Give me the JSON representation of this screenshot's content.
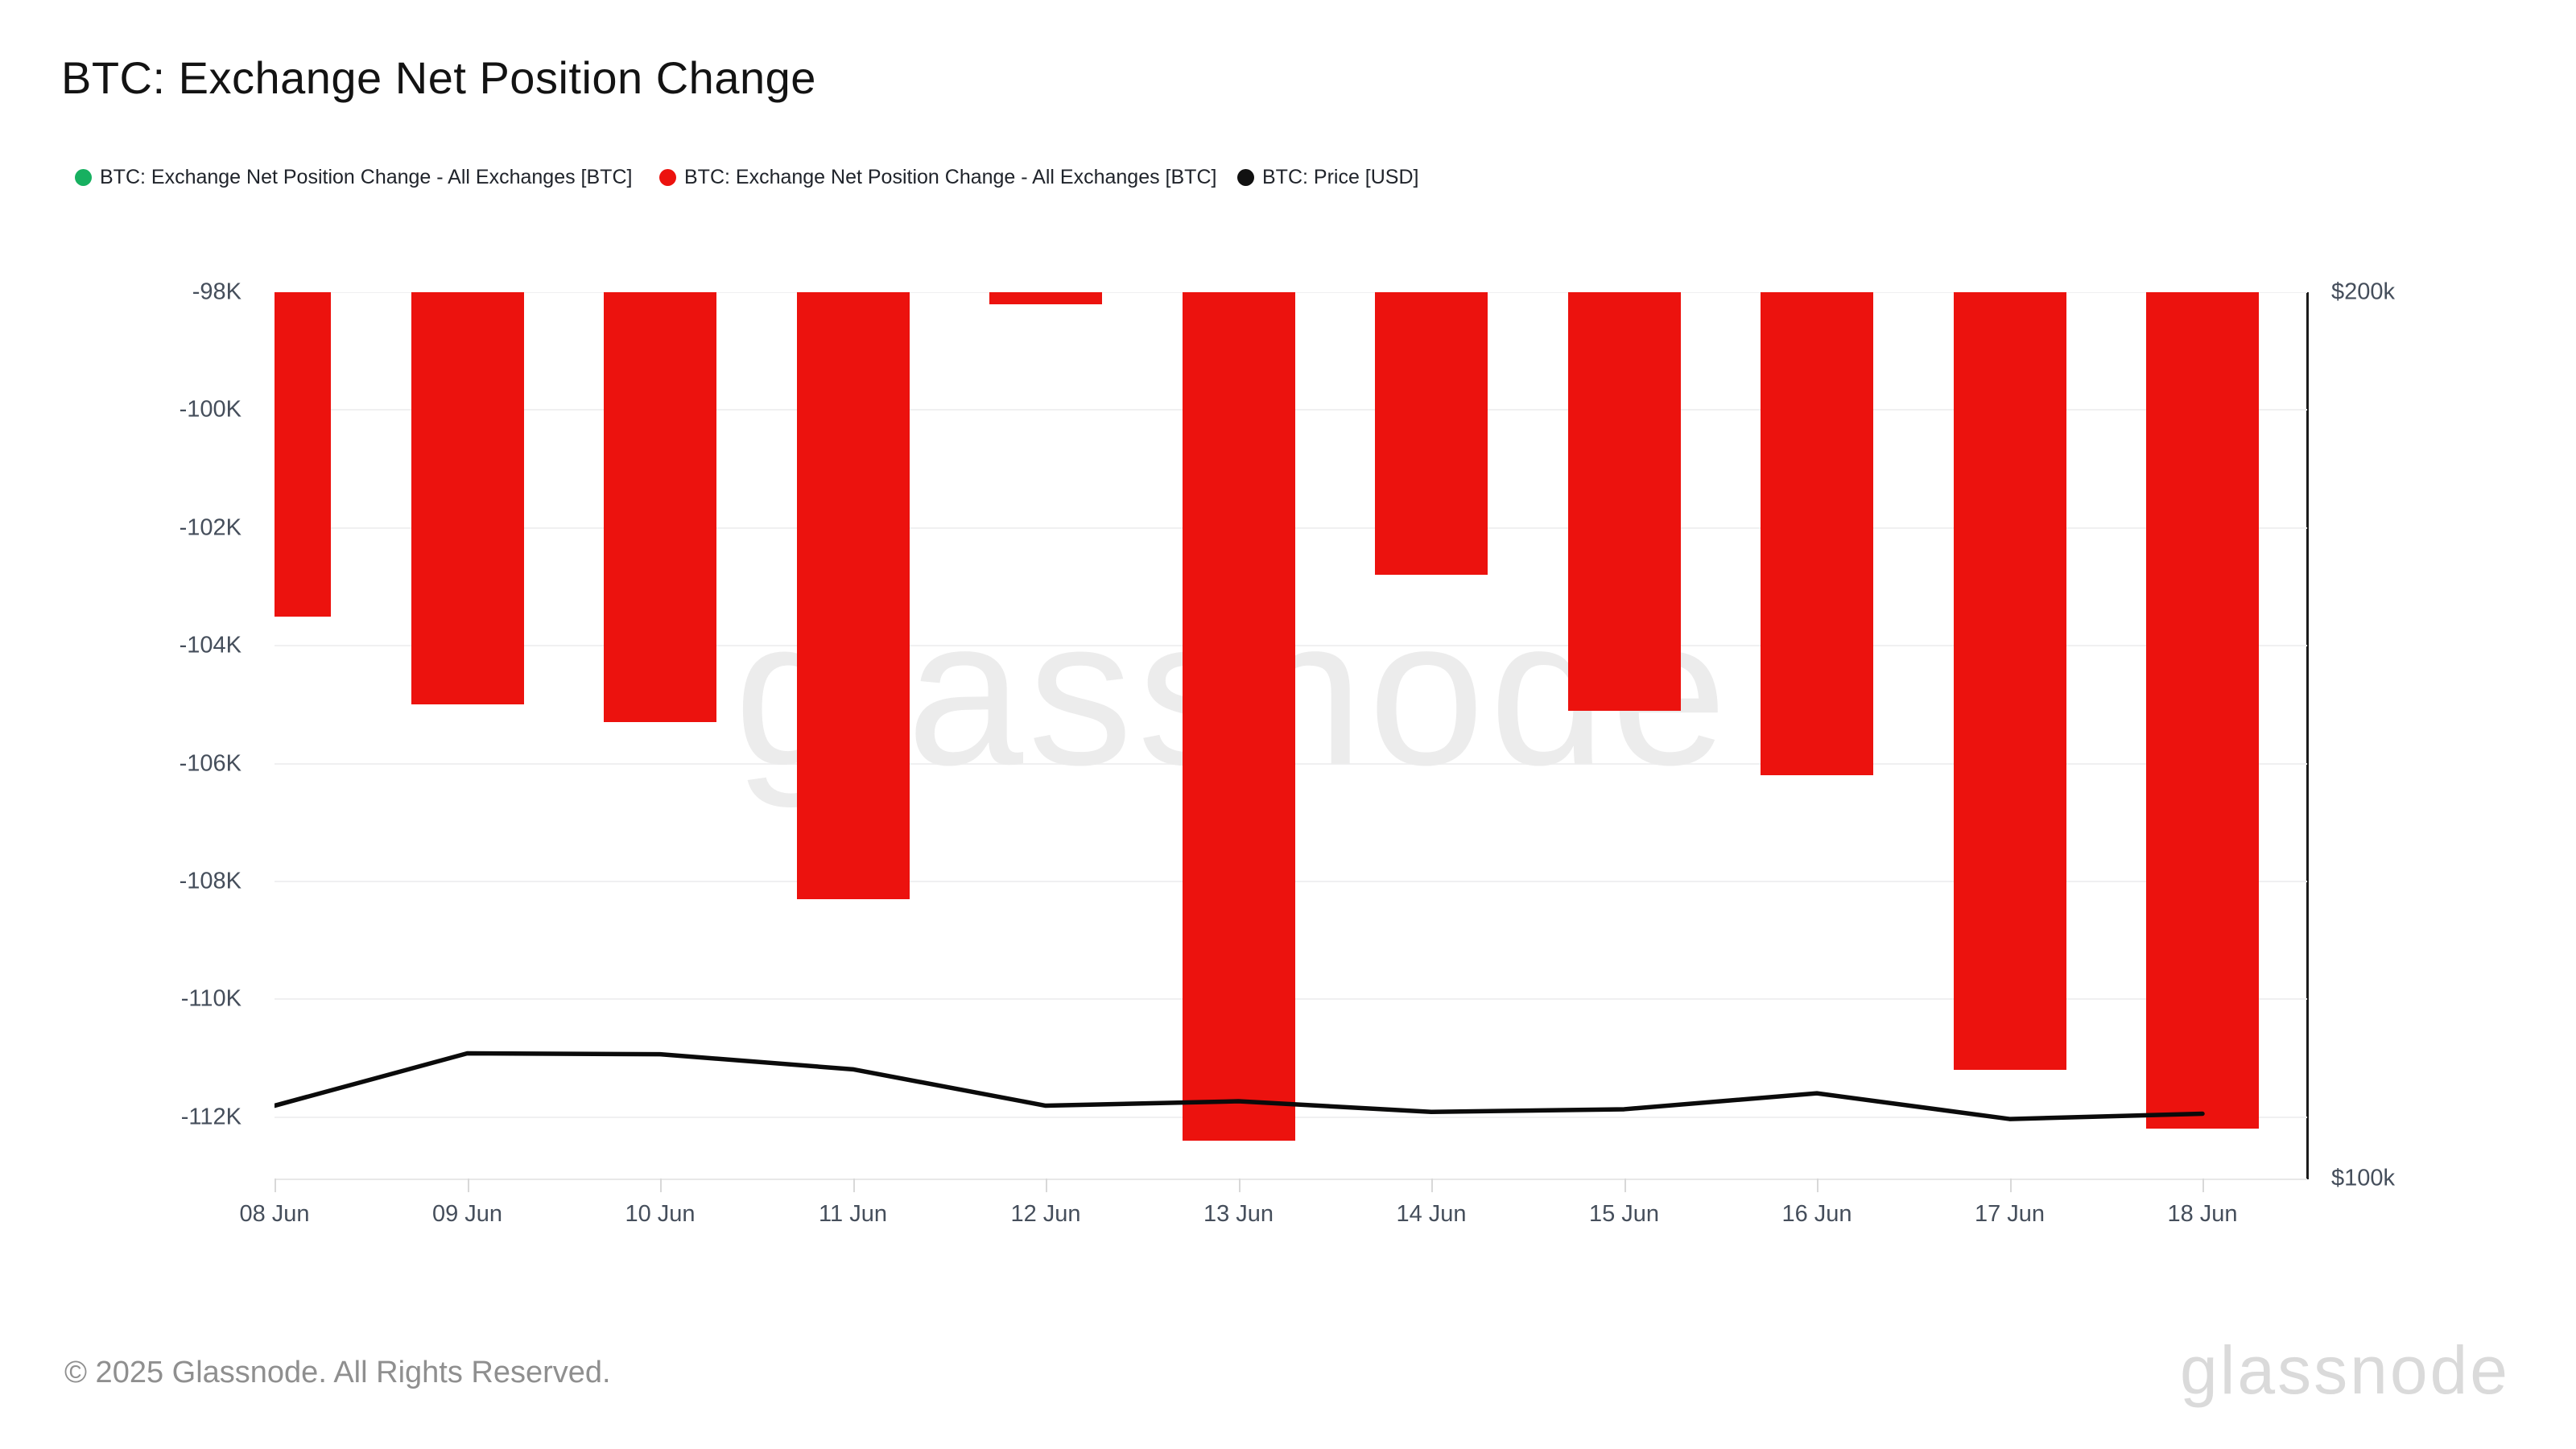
{
  "title": "BTC: Exchange Net Position Change",
  "legend": {
    "items": [
      {
        "label": "BTC: Exchange Net Position Change - All Exchanges [BTC]",
        "color": "#17b060",
        "series": "inflow-positive"
      },
      {
        "label": "BTC: Exchange Net Position Change - All Exchanges [BTC]",
        "color": "#ec120e",
        "series": "outflow-negative"
      },
      {
        "label": "BTC: Price [USD]",
        "color": "#111111",
        "series": "price"
      }
    ]
  },
  "watermark": {
    "text": "glassnode"
  },
  "footer": {
    "copyright": "© 2025 Glassnode. All Rights Reserved.",
    "logo_text": "glassnode"
  },
  "chart_data": {
    "type": "bar",
    "title": "BTC: Exchange Net Position Change",
    "categories": [
      "08 Jun",
      "09 Jun",
      "10 Jun",
      "11 Jun",
      "12 Jun",
      "13 Jun",
      "14 Jun",
      "15 Jun",
      "16 Jun",
      "17 Jun",
      "18 Jun"
    ],
    "series": [
      {
        "name": "BTC: Exchange Net Position Change - All Exchanges [BTC]",
        "type": "bar",
        "color": "#ec120e",
        "unit": "K BTC",
        "values": [
          -103.5,
          -105.0,
          -105.3,
          -108.3,
          -98.2,
          -112.4,
          -102.8,
          -105.1,
          -106.2,
          -111.2,
          -112.2
        ]
      },
      {
        "name": "BTC: Price [USD]",
        "type": "line",
        "color": "#0b0b0b",
        "unit": "k USD",
        "values": [
          108.3,
          114.2,
          114.1,
          112.4,
          108.3,
          108.8,
          107.6,
          107.9,
          109.7,
          106.8,
          107.4
        ]
      }
    ],
    "y_axis_left": {
      "tick_labels": [
        "-98K",
        "-100K",
        "-102K",
        "-104K",
        "-106K",
        "-108K",
        "-110K",
        "-112K"
      ],
      "tick_values": [
        -98,
        -100,
        -102,
        -104,
        -106,
        -108,
        -110,
        -112
      ],
      "visible_range": [
        -113.05,
        -98
      ],
      "note": "bars extend from above the visible top of the axis (clipped at -98K)"
    },
    "y_axis_right": {
      "tick_labels": [
        "$200k",
        "$100k"
      ],
      "tick_values": [
        200,
        100
      ],
      "range": [
        100,
        200
      ]
    },
    "grid": true,
    "legend_position": "top"
  }
}
